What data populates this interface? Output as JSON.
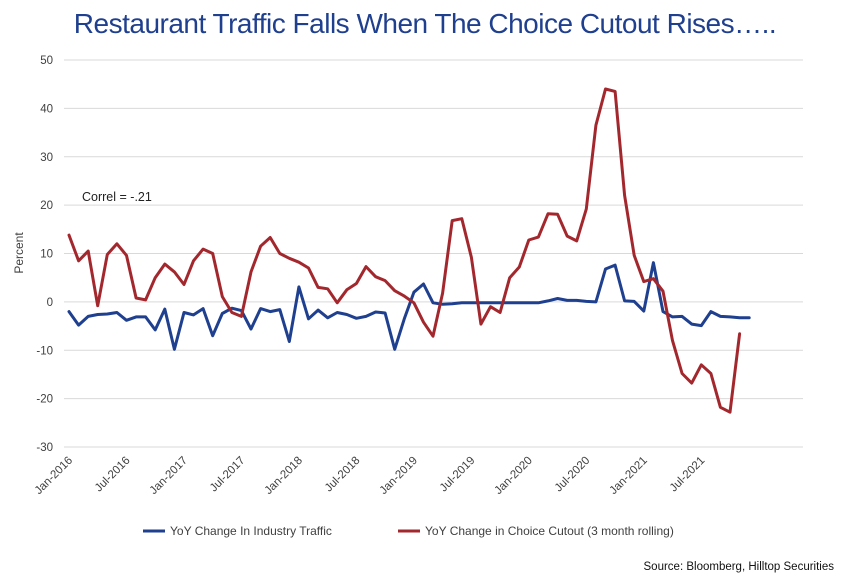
{
  "chart_data": {
    "type": "line",
    "title": "Restaurant Traffic Falls When The Choice Cutout Rises…..",
    "xlabel": "",
    "ylabel": "Percent",
    "ylim": [
      -30,
      50
    ],
    "yticks": [
      -30,
      -20,
      -10,
      0,
      10,
      20,
      30,
      40,
      50
    ],
    "grid": true,
    "legend_position": "bottom",
    "x_tick_labels": [
      "Jan-2016",
      "Jul-2016",
      "Jan-2017",
      "Jul-2017",
      "Jan-2018",
      "Jul-2018",
      "Jan-2019",
      "Jul-2019",
      "Jan-2020",
      "Jul-2020",
      "Jan-2021",
      "Jul-2021"
    ],
    "x": [
      "Jan-2016",
      "Feb-2016",
      "Mar-2016",
      "Apr-2016",
      "May-2016",
      "Jun-2016",
      "Jul-2016",
      "Aug-2016",
      "Sep-2016",
      "Oct-2016",
      "Nov-2016",
      "Dec-2016",
      "Jan-2017",
      "Feb-2017",
      "Mar-2017",
      "Apr-2017",
      "May-2017",
      "Jun-2017",
      "Jul-2017",
      "Aug-2017",
      "Sep-2017",
      "Oct-2017",
      "Nov-2017",
      "Dec-2017",
      "Jan-2018",
      "Feb-2018",
      "Mar-2018",
      "Apr-2018",
      "May-2018",
      "Jun-2018",
      "Jul-2018",
      "Aug-2018",
      "Sep-2018",
      "Oct-2018",
      "Nov-2018",
      "Dec-2018",
      "Jan-2019",
      "Feb-2019",
      "Mar-2019",
      "Apr-2019",
      "May-2019",
      "Jun-2019",
      "Jul-2019",
      "Aug-2019",
      "Sep-2019",
      "Oct-2019",
      "Nov-2019",
      "Dec-2019",
      "Jan-2020",
      "Feb-2020",
      "Mar-2020",
      "Apr-2020",
      "May-2020",
      "Jun-2020",
      "Jul-2020",
      "Aug-2020",
      "Sep-2020",
      "Oct-2020",
      "Nov-2020",
      "Dec-2020",
      "Jan-2021",
      "Feb-2021",
      "Mar-2021",
      "Apr-2021",
      "May-2021",
      "Jun-2021",
      "Jul-2021",
      "Aug-2021",
      "Sep-2021",
      "Oct-2021",
      "Nov-2021",
      "Dec-2021"
    ],
    "series": [
      {
        "name": "YoY Change In Industry Traffic",
        "color": "#1f3f8f",
        "values": [
          -2,
          -4.8,
          -3,
          -2.6,
          -2.5,
          -2.2,
          -3.8,
          -3.1,
          -3.1,
          -5.8,
          -1.5,
          -9.8,
          -2.2,
          -2.7,
          -1.4,
          -7,
          -2.4,
          -1.3,
          -1.8,
          -5.6,
          -1.4,
          -2,
          -1.6,
          -8.2,
          3.1,
          -3.5,
          -1.7,
          -3.3,
          -2.2,
          -2.6,
          -3.4,
          -3,
          -2.1,
          -2.3,
          -9.8,
          -3.5,
          2,
          3.7,
          -0.2,
          -0.5,
          -0.4,
          -0.2,
          -0.2,
          -0.2,
          -0.2,
          -0.2,
          -0.2,
          -0.2,
          -0.2,
          -0.2,
          0.2,
          0.7,
          0.3,
          0.3,
          0.1,
          0,
          6.8,
          7.6,
          0.2,
          0.1,
          -1.9,
          8.1,
          -2,
          -3.1,
          -3,
          -4.6,
          -4.9,
          -2,
          -3,
          -3.1,
          -3.3,
          -3.3
        ]
      },
      {
        "name": "YoY Change in Choice Cutout (3 month rolling)",
        "color": "#a3282e",
        "values": [
          13.8,
          8.5,
          10.5,
          -0.8,
          9.8,
          12,
          9.6,
          0.8,
          0.4,
          5,
          7.8,
          6.2,
          3.6,
          8.5,
          10.9,
          10,
          1.1,
          -2.2,
          -3,
          6.2,
          11.5,
          13.3,
          10,
          9,
          8.2,
          7,
          3,
          2.7,
          -0.2,
          2.5,
          3.8,
          7.3,
          5.2,
          4.4,
          2.3,
          1.2,
          -0.2,
          -4.2,
          -7.1,
          1.8,
          16.8,
          17.2,
          9.2,
          -4.6,
          -1,
          -2.2,
          5,
          7.2,
          12.8,
          13.4,
          18.2,
          18.1,
          13.6,
          12.6,
          19.2,
          36.5,
          44,
          43.5,
          22,
          9.6,
          4.2,
          4.8,
          2.2,
          -8,
          -14.8,
          -16.8,
          -13,
          -14.8,
          -21.8,
          -22.8,
          -6.6,
          null
        ]
      }
    ],
    "annotations": [
      "Correl = -.21"
    ]
  },
  "source": "Source: Bloomberg, Hilltop Securities"
}
